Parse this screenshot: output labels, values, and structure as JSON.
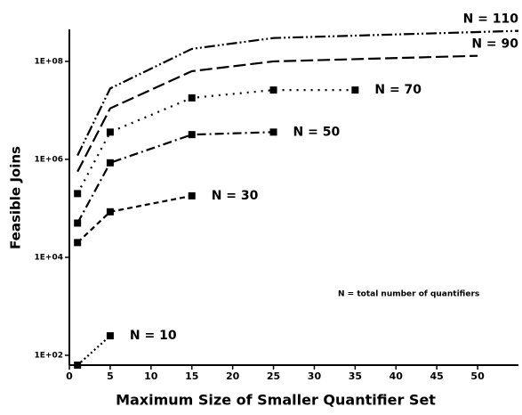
{
  "chart_data": {
    "type": "line",
    "xlabel": "Maximum Size of Smaller Quantifier Set",
    "ylabel": "Feasible Joins",
    "annotation": "N = total number of quantifiers",
    "log_y": true,
    "xlim": [
      0,
      55
    ],
    "xticks": [
      0,
      5,
      10,
      15,
      20,
      25,
      30,
      35,
      40,
      45,
      50
    ],
    "ylim": [
      63,
      450000000
    ],
    "yticks": [
      {
        "value": 100,
        "label": "1E+02"
      },
      {
        "value": 10000,
        "label": "1E+04"
      },
      {
        "value": 1000000,
        "label": "1E+06"
      },
      {
        "value": 100000000,
        "label": "1E+08"
      }
    ],
    "series": [
      {
        "name": "N = 10",
        "color": "#000",
        "dash": "2,3",
        "markers": true,
        "x": [
          1,
          5
        ],
        "values": [
          63,
          250
        ]
      },
      {
        "name": "N = 30",
        "color": "#000",
        "dash": "6,4",
        "markers": true,
        "x": [
          1,
          5,
          15
        ],
        "values": [
          20000,
          85000,
          180000
        ]
      },
      {
        "name": "N = 50",
        "color": "#000",
        "dash": "10,4,2,4",
        "markers": true,
        "x": [
          1,
          5,
          15,
          25
        ],
        "values": [
          50000,
          850000,
          3200000,
          3600000
        ]
      },
      {
        "name": "N = 70",
        "color": "#000",
        "dash": "2,6",
        "markers": true,
        "x": [
          1,
          5,
          15,
          25,
          35
        ],
        "values": [
          200000,
          3600000,
          18000000,
          26000000,
          26000000
        ]
      },
      {
        "name": "N = 90",
        "color": "#000",
        "dash": "14,5",
        "markers": false,
        "x": [
          1,
          5,
          15,
          25,
          50
        ],
        "values": [
          560000,
          11000000,
          63000000,
          100000000,
          130000000
        ]
      },
      {
        "name": "N = 110",
        "color": "#000",
        "dash": "12,3,2,3,2,3",
        "markers": false,
        "x": [
          1,
          5,
          15,
          25,
          55
        ],
        "values": [
          1200000,
          28000000,
          180000000,
          300000000,
          420000000
        ]
      }
    ]
  }
}
